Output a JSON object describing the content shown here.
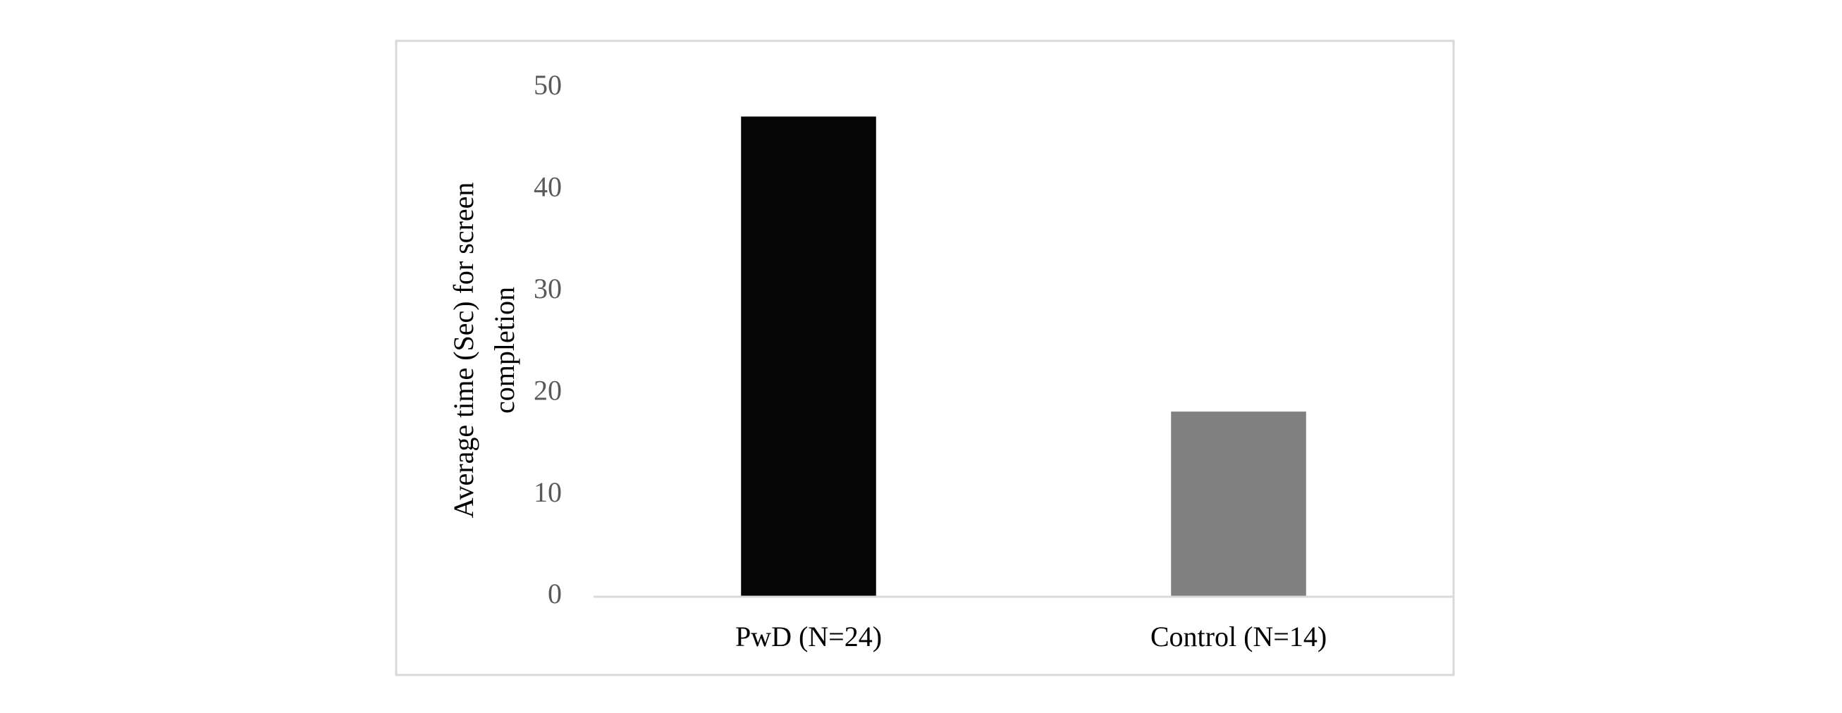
{
  "chart_data": {
    "type": "bar",
    "y_label": [
      "Average time (Sec) for screen",
      "completion"
    ],
    "categories": [
      "PwD (N=24)",
      "Control (N=14)"
    ],
    "values": [
      47.2,
      18.2
    ],
    "colors": [
      "#050505",
      "#808080"
    ],
    "ylim": [
      0,
      50
    ],
    "yticks": [
      0,
      10,
      20,
      30,
      40,
      50
    ],
    "grid": false
  }
}
